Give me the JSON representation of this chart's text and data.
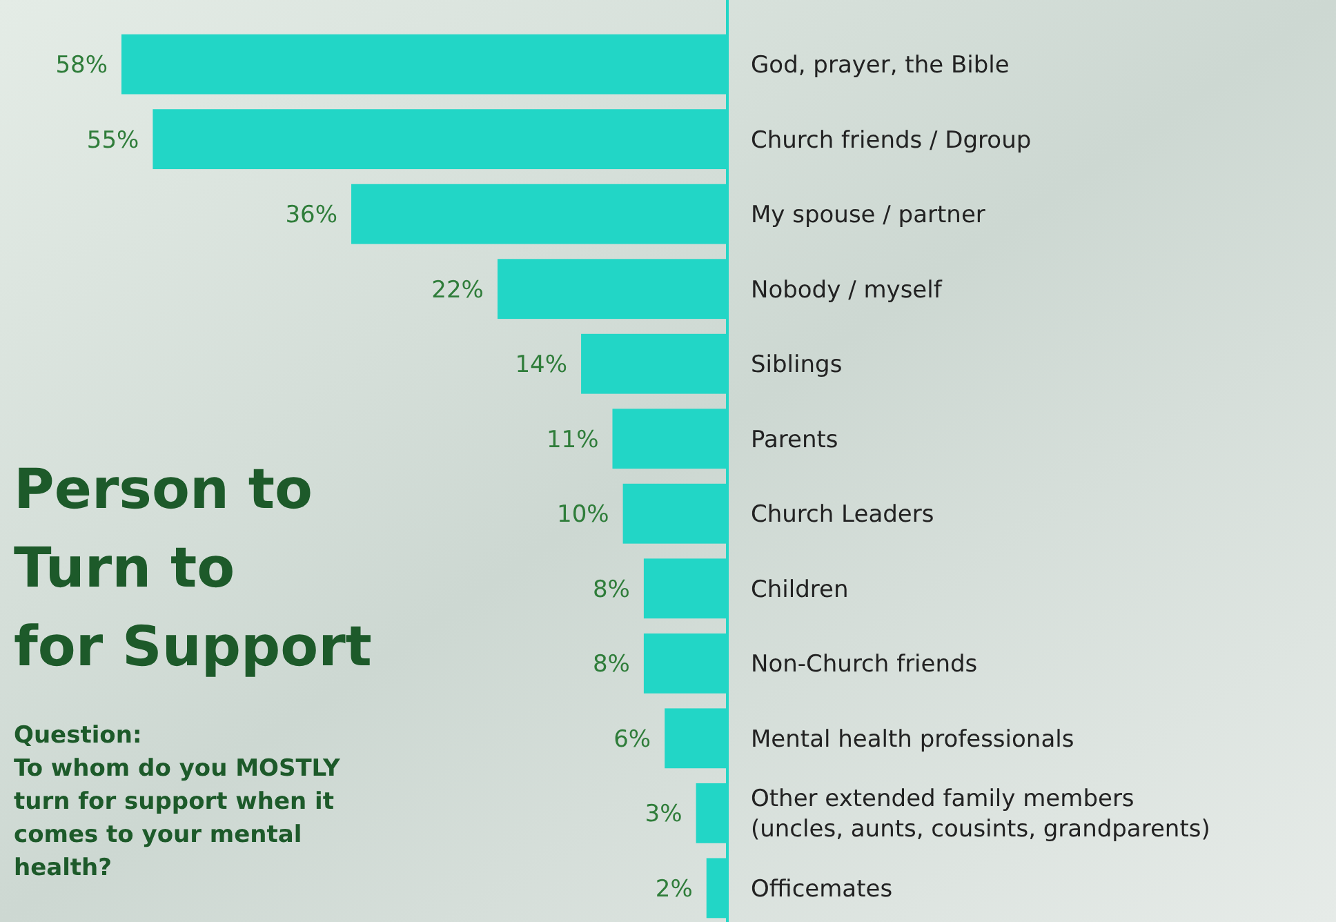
{
  "chart_data": {
    "type": "bar",
    "orientation": "horizontal",
    "title": "Person to\nTurn to\nfor Support",
    "subtitle": "Question:\nTo whom do you MOSTLY turn for support when it comes to your mental health?",
    "categories": [
      "God, prayer, the Bible",
      "Church friends / Dgroup",
      "My spouse / partner",
      "Nobody / myself",
      "Siblings",
      "Parents",
      "Church Leaders",
      "Children",
      "Non-Church friends",
      "Mental health professionals",
      "Other extended family members (uncles, aunts, cousints, grandparents)",
      "Officemates"
    ],
    "values": [
      58,
      55,
      36,
      22,
      14,
      11,
      10,
      8,
      8,
      6,
      3,
      2
    ],
    "color": "#22d6c6",
    "data_labels": true,
    "value_labels": [
      "58%",
      "55%",
      "36%",
      "22%",
      "14%",
      "11%",
      "10%",
      "8%",
      "8%",
      "6%",
      "3%",
      "2%"
    ]
  }
}
